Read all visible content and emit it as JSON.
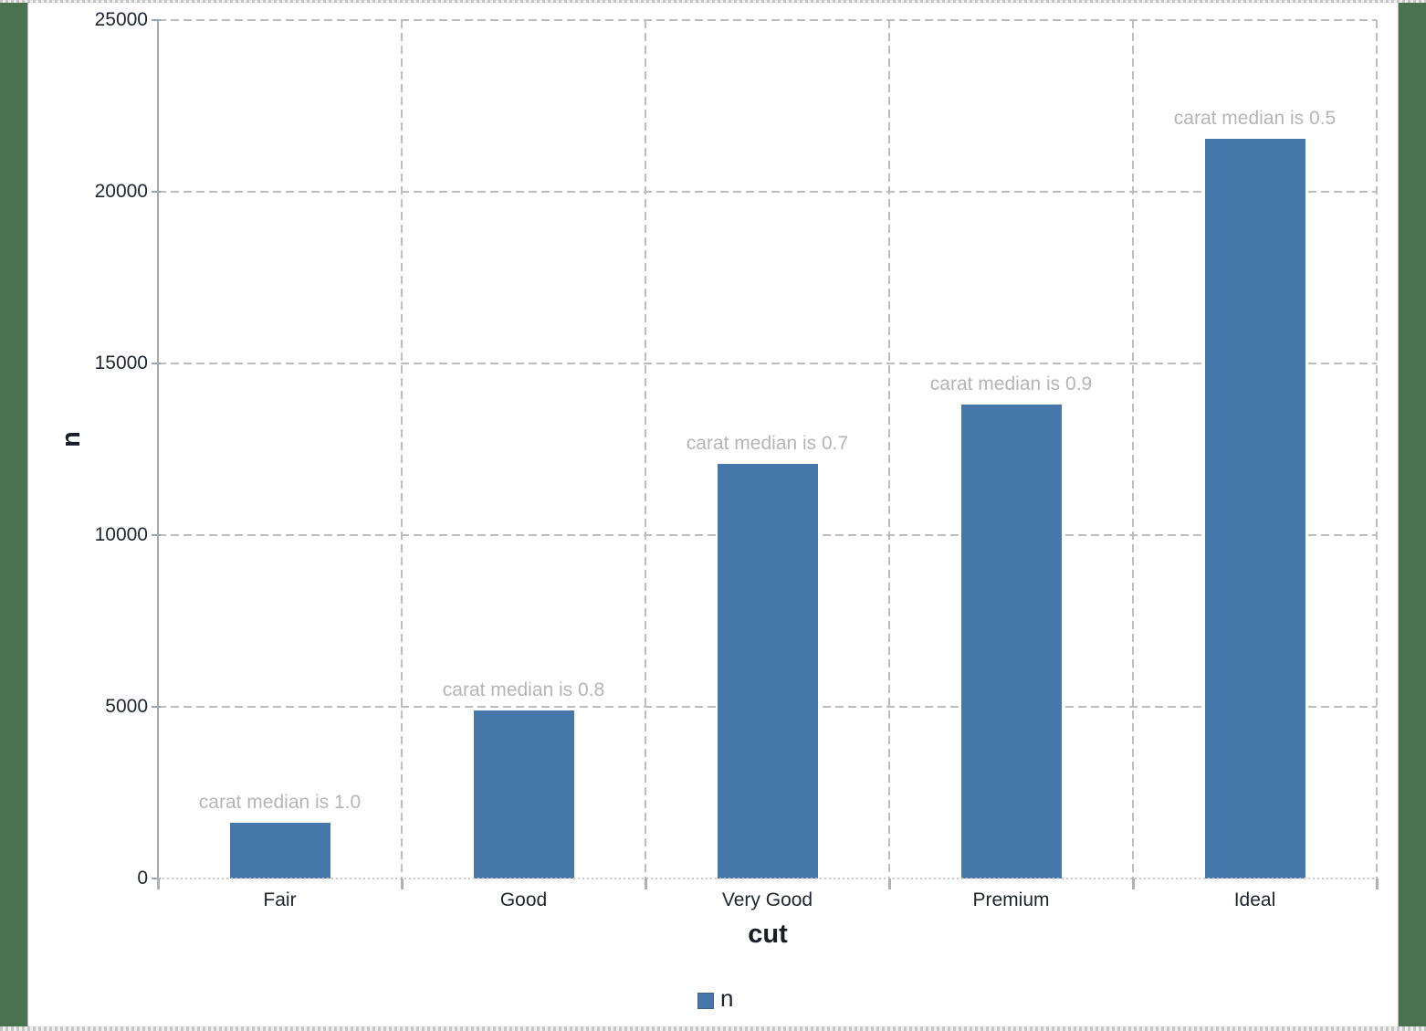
{
  "background": {
    "frame_color": "#4a7150",
    "canvas_color": "#ffffff"
  },
  "chart_data": {
    "type": "bar",
    "title": "",
    "categories": [
      "Fair",
      "Good",
      "Very Good",
      "Premium",
      "Ideal"
    ],
    "values": [
      1610,
      4906,
      12082,
      13791,
      21551
    ],
    "annotations": [
      "carat median is 1.0",
      "carat median is 0.8",
      "carat median is 0.7",
      "carat median is 0.9",
      "carat median is 0.5"
    ],
    "xlabel": "cut",
    "ylabel": "n",
    "ylim": [
      0,
      25000
    ],
    "ytick_interval": 5000,
    "yticks": [
      "0",
      "5000",
      "10000",
      "15000",
      "20000",
      "25000"
    ],
    "grid": "dashed",
    "bar_color": "#4577ab",
    "annotation_color": "#b5b5b5",
    "legend": {
      "position": "bottom",
      "entries": [
        {
          "label": "n",
          "color": "#4577ab"
        }
      ]
    }
  }
}
